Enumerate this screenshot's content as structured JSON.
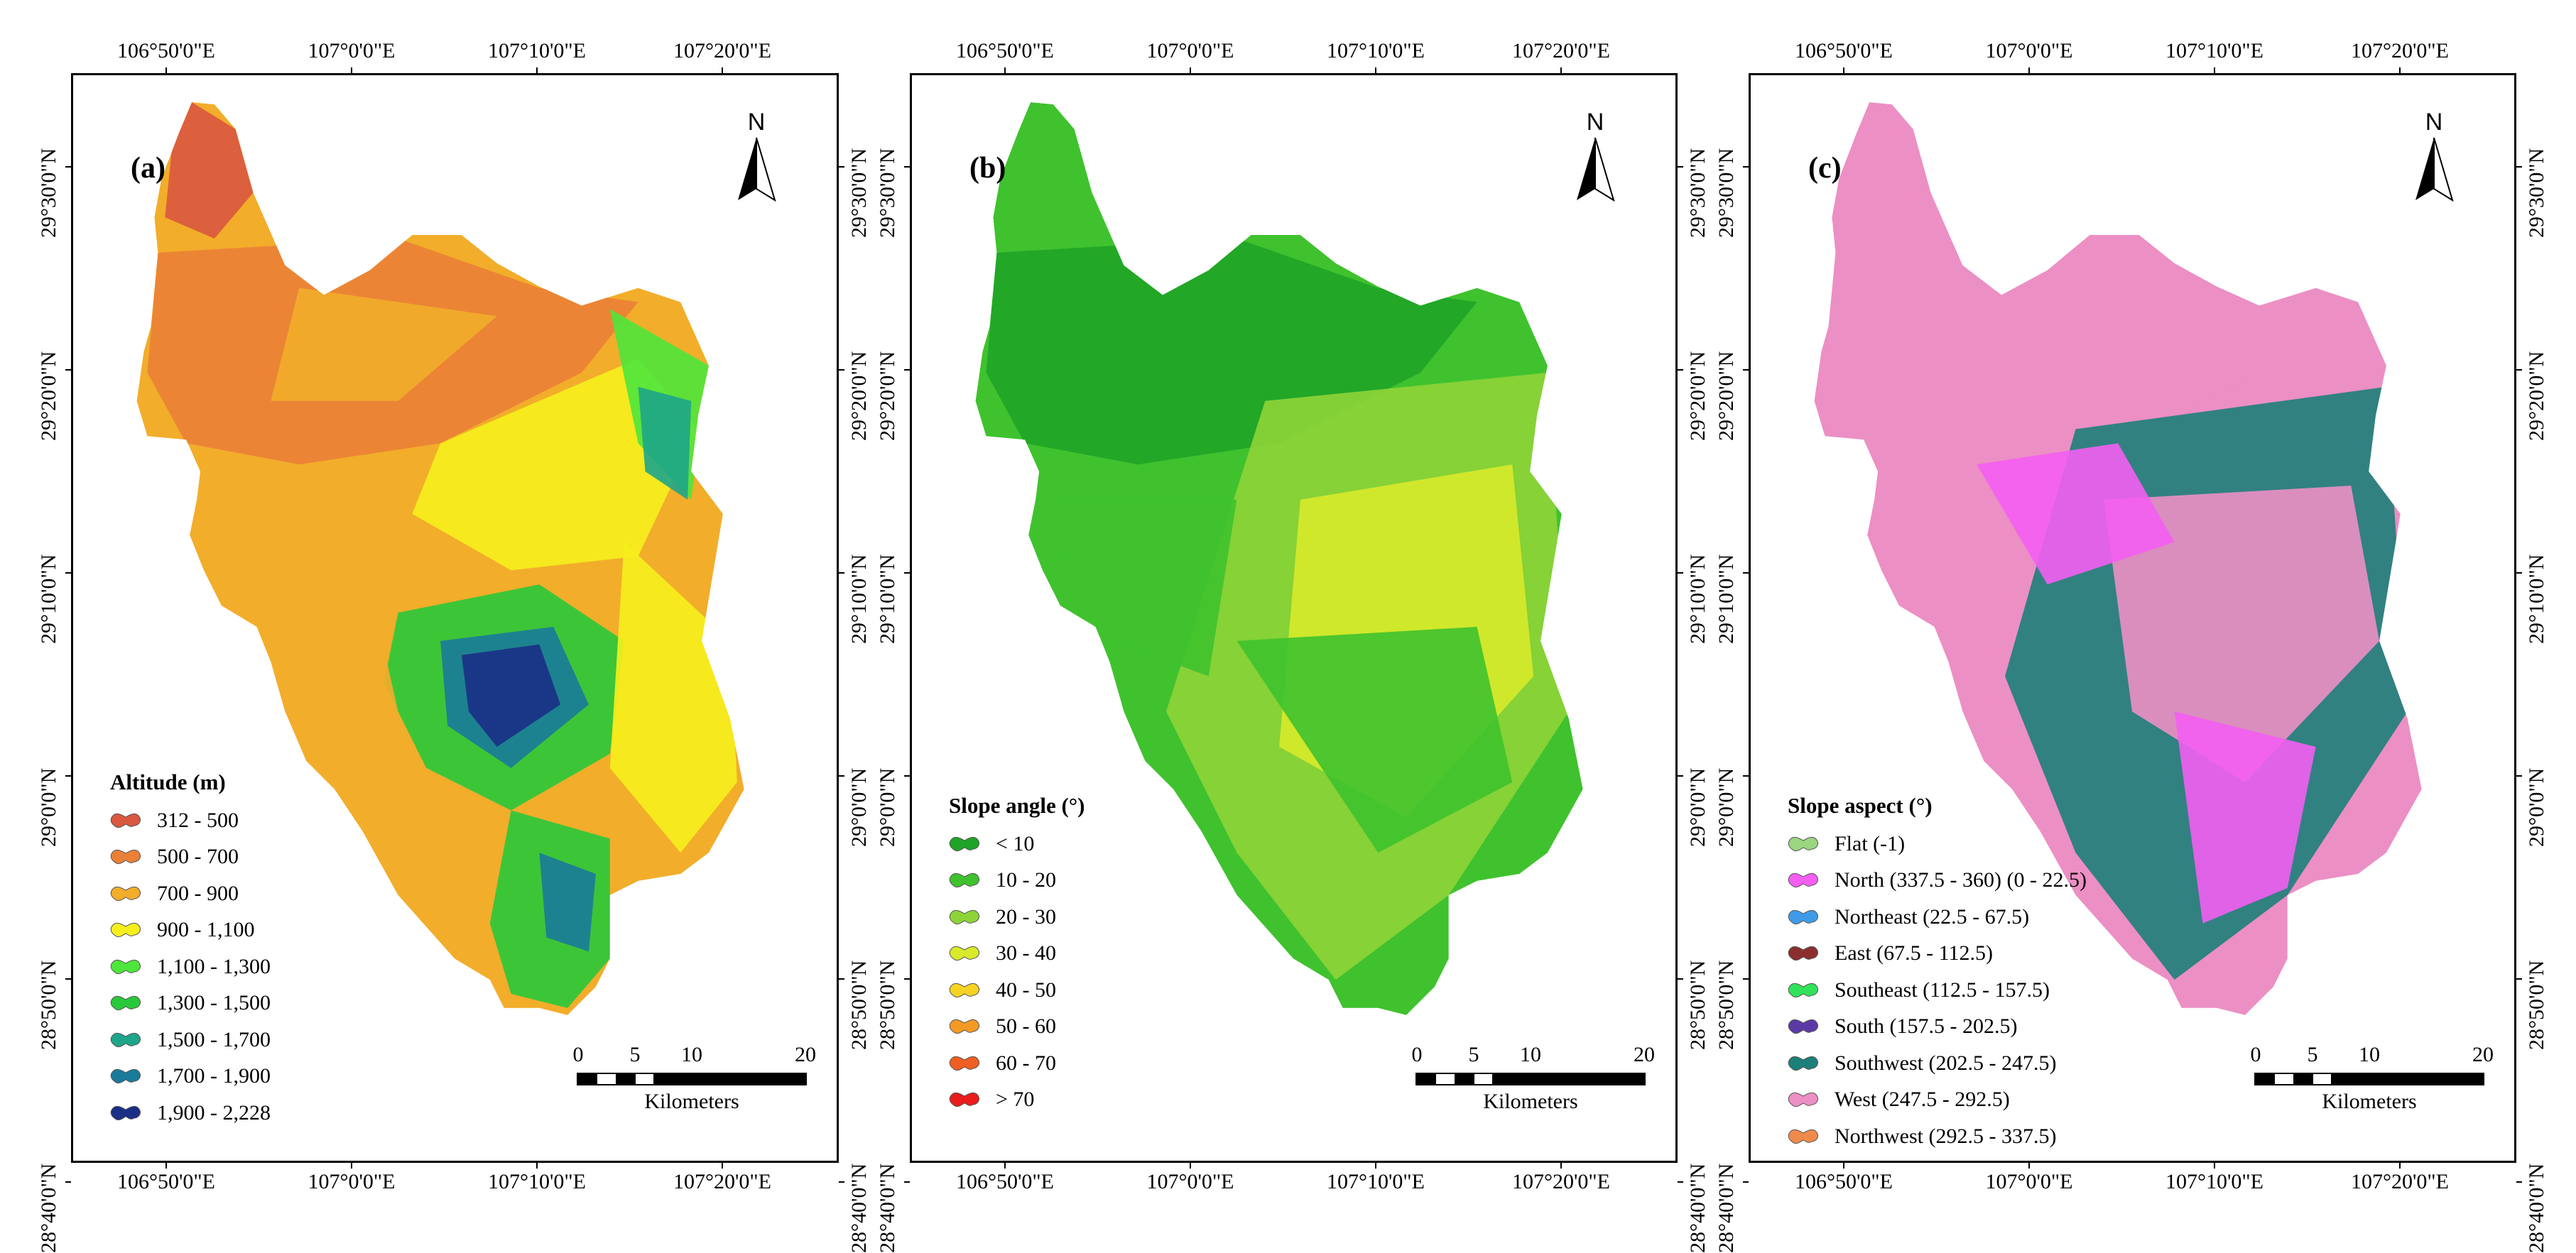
{
  "longitude_labels": [
    "106°50'0\"E",
    "107°0'0\"E",
    "107°10'0\"E",
    "107°20'0\"E"
  ],
  "latitude_labels": [
    "29°30'0\"N",
    "29°20'0\"N",
    "29°10'0\"N",
    "29°0'0\"N",
    "28°50'0\"N",
    "28°40'0\"N"
  ],
  "north_symbol": "N",
  "scale_bar": {
    "ticks": [
      "0",
      "5",
      "10",
      "20"
    ],
    "unit": "Kilometers"
  },
  "panels": [
    {
      "label": "(a)",
      "legend_title": "Altitude (m)",
      "legend": [
        {
          "label": "312 - 500",
          "color": "#d9583f"
        },
        {
          "label": "500 - 700",
          "color": "#ea8136"
        },
        {
          "label": "700 - 900",
          "color": "#f2ad2a"
        },
        {
          "label": "900 - 1,100",
          "color": "#f6ef1d"
        },
        {
          "label": "1,100 - 1,300",
          "color": "#4ee63b"
        },
        {
          "label": "1,300 - 1,500",
          "color": "#29c83a"
        },
        {
          "label": "1,500 - 1,700",
          "color": "#1ea58a"
        },
        {
          "label": "1,700 - 1,900",
          "color": "#1a7a9a"
        },
        {
          "label": "1,900 - 2,228",
          "color": "#1b2f86"
        }
      ]
    },
    {
      "label": "(b)",
      "legend_title": "Slope angle (°)",
      "legend": [
        {
          "label": "< 10",
          "color": "#1fa427"
        },
        {
          "label": "10 - 20",
          "color": "#3fc22e"
        },
        {
          "label": "20 - 30",
          "color": "#8ed438"
        },
        {
          "label": "30 - 40",
          "color": "#d8ea2a"
        },
        {
          "label": "40 - 50",
          "color": "#f6d323"
        },
        {
          "label": "50 - 60",
          "color": "#f39a25"
        },
        {
          "label": "60 - 70",
          "color": "#f05f22"
        },
        {
          "label": "> 70",
          "color": "#ea1c1c"
        }
      ]
    },
    {
      "label": "(c)",
      "legend_title": "Slope aspect (°)",
      "legend": [
        {
          "label": "Flat (-1)",
          "color": "#9ad57f"
        },
        {
          "label": "North (337.5 - 360) (0 - 22.5)",
          "color": "#f45ef2"
        },
        {
          "label": "Northeast (22.5 - 67.5)",
          "color": "#3f9be8"
        },
        {
          "label": "East (67.5 - 112.5)",
          "color": "#8c2e2e"
        },
        {
          "label": "Southeast (112.5 - 157.5)",
          "color": "#32e25b"
        },
        {
          "label": "South (157.5 - 202.5)",
          "color": "#5b3aa5"
        },
        {
          "label": "Southwest (202.5 - 247.5)",
          "color": "#1d7f7a"
        },
        {
          "label": "West (247.5 - 292.5)",
          "color": "#ec8fc4"
        },
        {
          "label": "Northwest (292.5 - 337.5)",
          "color": "#f08a4b"
        }
      ]
    }
  ]
}
